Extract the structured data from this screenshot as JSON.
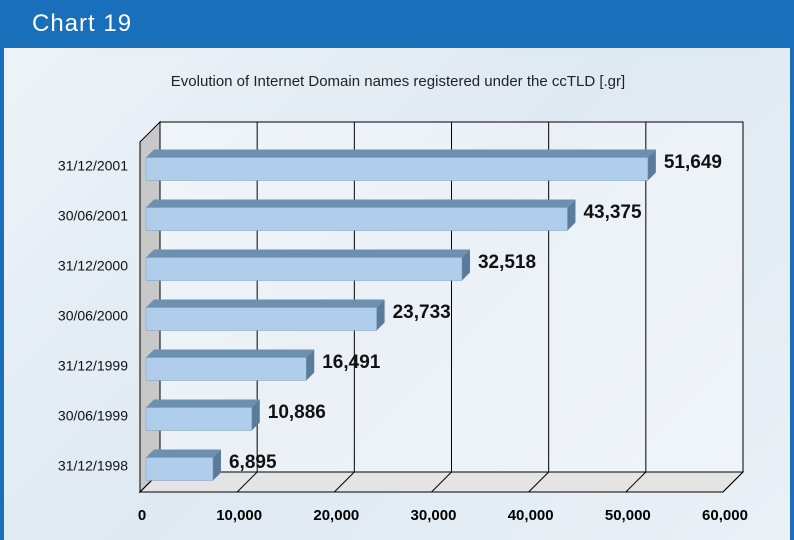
{
  "header": "Chart 19",
  "chart_data": {
    "type": "bar3d-horizontal",
    "title": "Evolution of Internet Domain names registered under the ccTLD [.gr]",
    "categories": [
      "31/12/2001",
      "30/06/2001",
      "31/12/2000",
      "30/06/2000",
      "31/12/1999",
      "30/06/1999",
      "31/12/1998"
    ],
    "values": [
      51649,
      43375,
      32518,
      23733,
      16491,
      10886,
      6895
    ],
    "value_labels": [
      "51,649",
      "43,375",
      "32,518",
      "23,733",
      "16,491",
      "10,886",
      "6,895"
    ],
    "color": "#b0cdec",
    "xlim": [
      0,
      60000
    ],
    "xticks": [
      0,
      {
        "value": 10000,
        "label": "10,000"
      },
      {
        "value": 20000,
        "label": "20,000"
      },
      {
        "value": 30000,
        "label": "30,000"
      },
      {
        "value": 40000,
        "label": "40,000"
      },
      {
        "value": 50000,
        "label": "50,000"
      },
      {
        "value": 60000,
        "label": "60,000"
      }
    ],
    "grid": true
  }
}
